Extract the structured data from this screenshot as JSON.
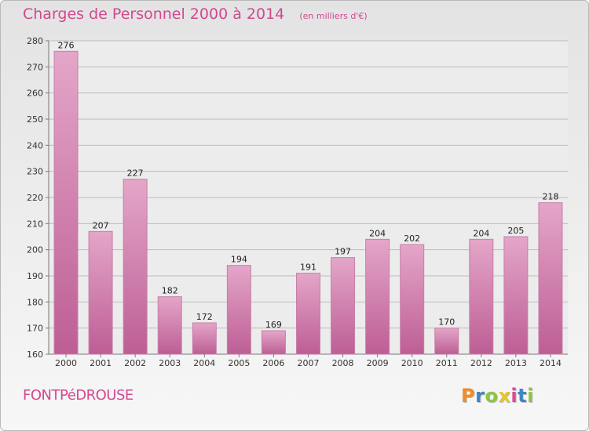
{
  "header": {
    "title": "Charges de Personnel 2000 à 2014",
    "subtitle": "(en milliers d'€)"
  },
  "footer": {
    "commune": "FONTPéDROUSE",
    "logo": "Proxiti"
  },
  "colors": {
    "title": "#d2488f",
    "bar_top": "#e4a6c8",
    "bar_bottom": "#bd5e95",
    "logo_letters": [
      "#f28c28",
      "#3a86c8",
      "#8cc63f",
      "#e8c52a",
      "#d94b8f",
      "#3a86c8",
      "#8cc63f"
    ]
  },
  "chart_data": {
    "type": "bar",
    "title": "Charges de Personnel 2000 à 2014",
    "subtitle": "(en milliers d'€)",
    "categories": [
      "2000",
      "2001",
      "2002",
      "2003",
      "2004",
      "2005",
      "2006",
      "2007",
      "2008",
      "2009",
      "2010",
      "2011",
      "2012",
      "2013",
      "2014"
    ],
    "values": [
      276,
      207,
      227,
      182,
      172,
      194,
      169,
      191,
      197,
      204,
      202,
      170,
      204,
      205,
      218
    ],
    "ylim": [
      160,
      280
    ],
    "yticks": [
      160,
      170,
      180,
      190,
      200,
      210,
      220,
      230,
      240,
      250,
      260,
      270,
      280
    ],
    "grid": "horizontal",
    "data_labels": true
  }
}
